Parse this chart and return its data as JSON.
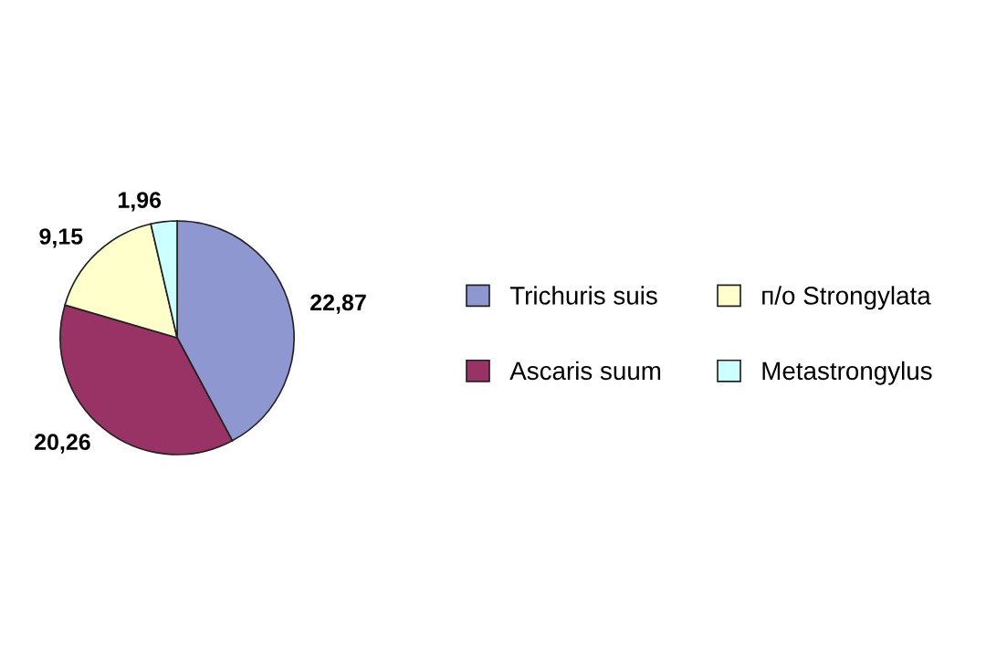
{
  "chart_data": {
    "type": "pie",
    "categories": [
      "Trichuris suis",
      "Ascaris suum",
      "п/о Strongylata",
      "Metastrongylus"
    ],
    "values": [
      22.87,
      20.26,
      9.15,
      1.96
    ],
    "value_labels": [
      "22,87",
      "20,26",
      "9,15",
      "1,96"
    ],
    "colors": [
      "#8e97d0",
      "#993366",
      "#ffffcc",
      "#ccffff"
    ],
    "legend": "right"
  }
}
